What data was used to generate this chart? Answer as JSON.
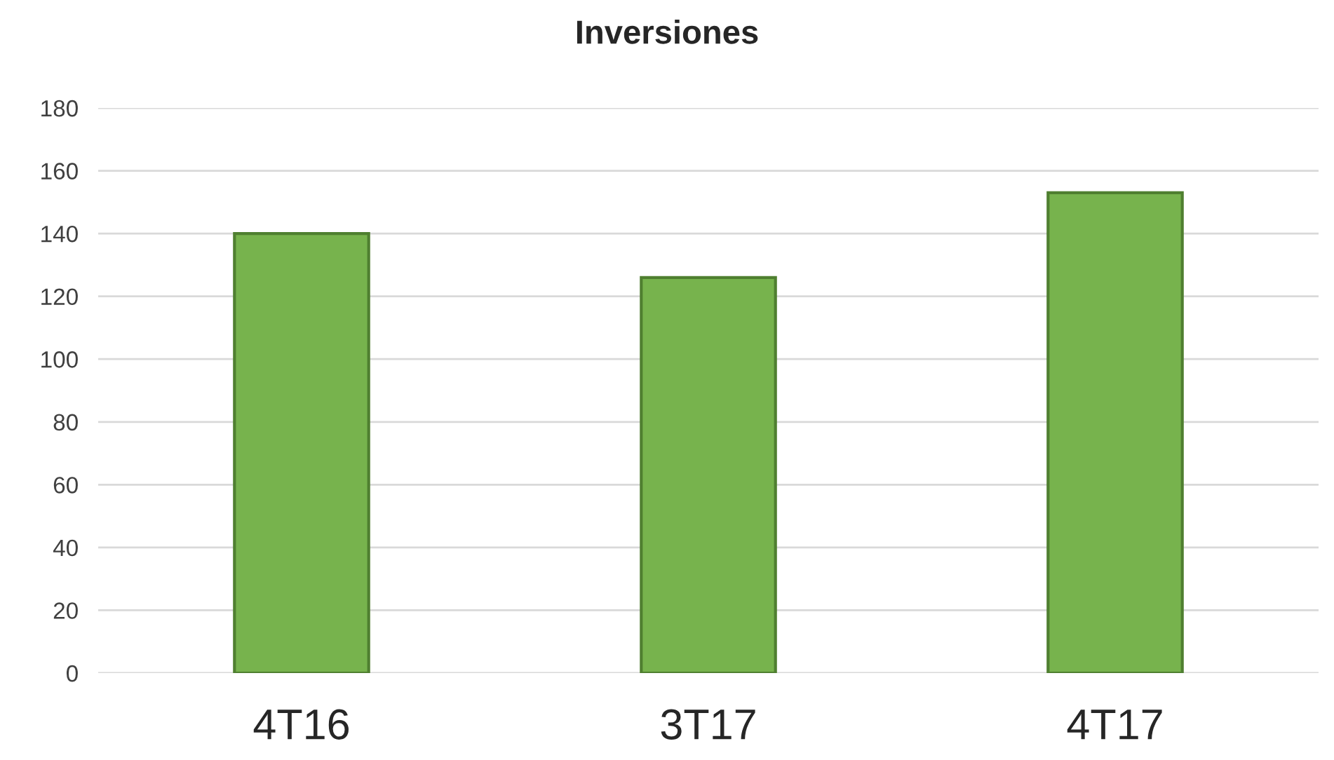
{
  "chart_data": {
    "type": "bar",
    "title": "Inversiones",
    "categories": [
      "4T16",
      "3T17",
      "4T17"
    ],
    "values": [
      140,
      126,
      153
    ],
    "color": "#77b34d",
    "ylim": [
      0,
      180
    ],
    "yticks": [
      0,
      20,
      40,
      60,
      80,
      100,
      120,
      140,
      160,
      180
    ],
    "grid": "y",
    "legend": false
  }
}
